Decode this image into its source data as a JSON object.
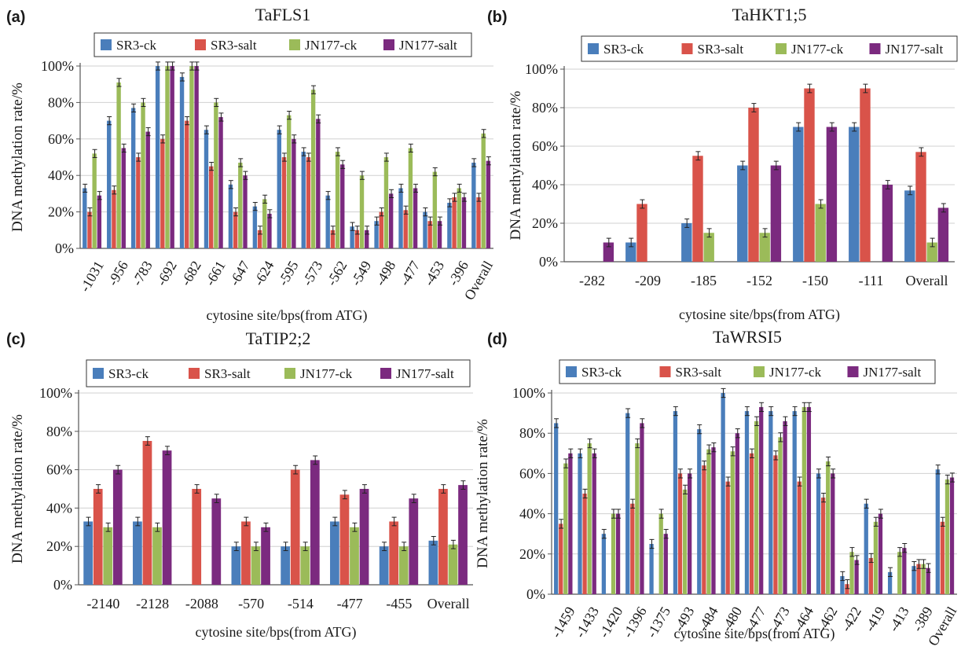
{
  "legend_colors": {
    "SR3-ck": "#4a7ebb",
    "SR3-salt": "#d9534a",
    "JN177-ck": "#9bbb59",
    "JN177-salt": "#7b2a7f"
  },
  "chart_data": [
    {
      "panel": "(a)",
      "type": "bar",
      "title": "TaFLS1",
      "xlabel": "cytosine site/bps(from ATG)",
      "ylabel": "DNA methylation rate/%",
      "ylim": [
        0,
        100
      ],
      "yticks": [
        "0%",
        "20%",
        "40%",
        "60%",
        "80%",
        "100%"
      ],
      "legend_position": "top",
      "rotate_x_labels": true,
      "categories": [
        "-1031",
        "-956",
        "-783",
        "-692",
        "-682",
        "-661",
        "-647",
        "-624",
        "-595",
        "-573",
        "-562",
        "-549",
        "-498",
        "-477",
        "-453",
        "-396",
        "Overall"
      ],
      "series": [
        {
          "name": "SR3-ck",
          "color": "#4a7ebb",
          "values": [
            33,
            70,
            77,
            100,
            94,
            65,
            35,
            23,
            65,
            53,
            29,
            12,
            15,
            33,
            20,
            25,
            47
          ]
        },
        {
          "name": "SR3-salt",
          "color": "#d9534a",
          "values": [
            20,
            32,
            50,
            60,
            70,
            45,
            20,
            10,
            50,
            50,
            10,
            10,
            20,
            21,
            15,
            28,
            28
          ]
        },
        {
          "name": "JN177-ck",
          "color": "#9bbb59",
          "values": [
            52,
            91,
            80,
            100,
            100,
            80,
            47,
            27,
            73,
            87,
            53,
            40,
            50,
            55,
            42,
            33,
            63
          ]
        },
        {
          "name": "JN177-salt",
          "color": "#7b2a7f",
          "values": [
            29,
            55,
            64,
            100,
            100,
            72,
            40,
            19,
            60,
            71,
            46,
            10,
            30,
            33,
            15,
            28,
            48
          ]
        }
      ]
    },
    {
      "panel": "(b)",
      "type": "bar",
      "title": "TaHKT1;5",
      "xlabel": "cytosine site/bps(from ATG)",
      "ylabel": "DNA methylation rate/%",
      "ylim": [
        0,
        100
      ],
      "yticks": [
        "0%",
        "20%",
        "40%",
        "60%",
        "80%",
        "100%"
      ],
      "legend_position": "top",
      "rotate_x_labels": false,
      "categories": [
        "-282",
        "-209",
        "-185",
        "-152",
        "-150",
        "-111",
        "Overall"
      ],
      "series": [
        {
          "name": "SR3-ck",
          "color": "#4a7ebb",
          "values": [
            0,
            10,
            20,
            50,
            70,
            70,
            37
          ]
        },
        {
          "name": "SR3-salt",
          "color": "#d9534a",
          "values": [
            0,
            30,
            55,
            80,
            90,
            90,
            57
          ]
        },
        {
          "name": "JN177-ck",
          "color": "#9bbb59",
          "values": [
            0,
            0,
            15,
            15,
            30,
            0,
            10
          ]
        },
        {
          "name": "JN177-salt",
          "color": "#7b2a7f",
          "values": [
            10,
            0,
            0,
            50,
            70,
            40,
            28
          ]
        }
      ]
    },
    {
      "panel": "(c)",
      "type": "bar",
      "title": "TaTIP2;2",
      "xlabel": "cytosine site/bps(from ATG)",
      "ylabel": "DNA methylation rate/%",
      "ylim": [
        0,
        100
      ],
      "yticks": [
        "0%",
        "20%",
        "40%",
        "60%",
        "80%",
        "100%"
      ],
      "legend_position": "top",
      "rotate_x_labels": false,
      "categories": [
        "-2140",
        "-2128",
        "-2088",
        "-570",
        "-514",
        "-477",
        "-455",
        "Overall"
      ],
      "series": [
        {
          "name": "SR3-ck",
          "color": "#4a7ebb",
          "values": [
            33,
            33,
            0,
            20,
            20,
            33,
            20,
            23
          ]
        },
        {
          "name": "SR3-salt",
          "color": "#d9534a",
          "values": [
            50,
            75,
            50,
            33,
            60,
            47,
            33,
            50
          ]
        },
        {
          "name": "JN177-ck",
          "color": "#9bbb59",
          "values": [
            30,
            30,
            0,
            20,
            20,
            30,
            20,
            21
          ]
        },
        {
          "name": "JN177-salt",
          "color": "#7b2a7f",
          "values": [
            60,
            70,
            45,
            30,
            65,
            50,
            45,
            52
          ]
        }
      ]
    },
    {
      "panel": "(d)",
      "type": "bar",
      "title": "TaWRSI5",
      "xlabel": "cytosine site/bps(from ATG)",
      "ylabel": "DNA methylation rate/%",
      "ylim": [
        0,
        100
      ],
      "yticks": [
        "0%",
        "20%",
        "40%",
        "60%",
        "80%",
        "100%"
      ],
      "legend_position": "top",
      "rotate_x_labels": true,
      "categories": [
        "-1459",
        "-1433",
        "-1420",
        "-1396",
        "-1375",
        "-493",
        "-484",
        "-480",
        "-477",
        "-473",
        "-464",
        "-462",
        "-422",
        "-419",
        "-413",
        "-389",
        "Overall"
      ],
      "series": [
        {
          "name": "SR3-ck",
          "color": "#4a7ebb",
          "values": [
            85,
            70,
            30,
            90,
            25,
            91,
            82,
            100,
            91,
            91,
            91,
            60,
            9,
            45,
            11,
            14,
            62
          ]
        },
        {
          "name": "SR3-salt",
          "color": "#d9534a",
          "values": [
            35,
            50,
            0,
            45,
            0,
            60,
            64,
            56,
            70,
            69,
            56,
            48,
            5,
            18,
            0,
            15,
            36
          ]
        },
        {
          "name": "JN177-ck",
          "color": "#9bbb59",
          "values": [
            65,
            75,
            40,
            75,
            40,
            52,
            72,
            71,
            86,
            78,
            93,
            66,
            21,
            36,
            21,
            15,
            57
          ]
        },
        {
          "name": "JN177-salt",
          "color": "#7b2a7f",
          "values": [
            70,
            70,
            40,
            85,
            30,
            60,
            73,
            80,
            93,
            86,
            93,
            60,
            17,
            40,
            23,
            13,
            58
          ]
        }
      ]
    }
  ]
}
